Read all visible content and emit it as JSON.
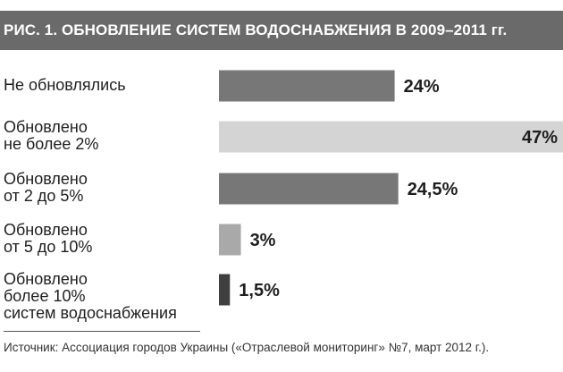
{
  "header": {
    "title": "РИС. 1. ОБНОВЛЕНИЕ СИСТЕМ ВОДОСНАБЖЕНИЯ В 2009–2011 гг."
  },
  "chart_data": {
    "type": "bar",
    "orientation": "horizontal",
    "title": "РИС. 1. ОБНОВЛЕНИЕ СИСТЕМ ВОДОСНАБЖЕНИЯ В 2009–2011 гг.",
    "categories": [
      "Не обновлялись",
      "Обновлено\nне более 2%",
      "Обновлено\nот 2 до 5%",
      "Обновлено\nот 5 до 10%",
      "Обновлено\nболее 10%\nсистем водоснабжения"
    ],
    "values": [
      24,
      47,
      24.5,
      3,
      1.5
    ],
    "value_labels": [
      "24%",
      "47%",
      "24,5%",
      "3%",
      "1,5%"
    ],
    "colors": [
      "#777777",
      "#d4d4d4",
      "#777777",
      "#a9a9a9",
      "#3f3f3f"
    ],
    "xlim": [
      0,
      47
    ],
    "grid": false
  },
  "footer": {
    "source": "Источник: Ассоциация городов Украины («Отраслевой мониторинг» №7, март 2012 г.)."
  }
}
